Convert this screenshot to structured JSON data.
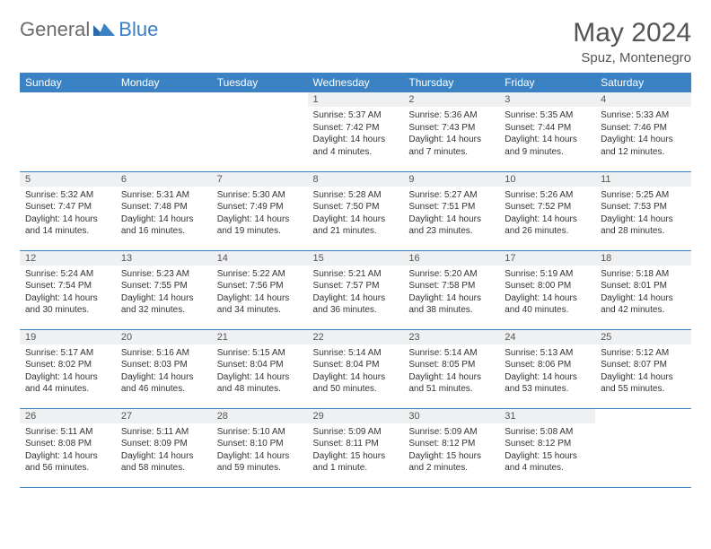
{
  "brand": {
    "general": "General",
    "blue": "Blue"
  },
  "header": {
    "month_title": "May 2024",
    "location": "Spuz, Montenegro"
  },
  "colors": {
    "header_bg": "#3b82c4",
    "header_text": "#ffffff",
    "daynum_bg": "#eef0f2",
    "daynum_text": "#555555",
    "body_text": "#333333",
    "rule": "#3b82c4",
    "logo_general": "#6b6b6b",
    "logo_blue": "#3b7fc4"
  },
  "typography": {
    "month_title_pt": 30,
    "location_pt": 15,
    "dayhead_pt": 12,
    "daynum_pt": 11,
    "cell_pt": 10
  },
  "day_headers": [
    "Sunday",
    "Monday",
    "Tuesday",
    "Wednesday",
    "Thursday",
    "Friday",
    "Saturday"
  ],
  "weeks": [
    [
      {
        "n": "",
        "txt": ""
      },
      {
        "n": "",
        "txt": ""
      },
      {
        "n": "",
        "txt": ""
      },
      {
        "n": "1",
        "txt": "Sunrise: 5:37 AM\nSunset: 7:42 PM\nDaylight: 14 hours and 4 minutes."
      },
      {
        "n": "2",
        "txt": "Sunrise: 5:36 AM\nSunset: 7:43 PM\nDaylight: 14 hours and 7 minutes."
      },
      {
        "n": "3",
        "txt": "Sunrise: 5:35 AM\nSunset: 7:44 PM\nDaylight: 14 hours and 9 minutes."
      },
      {
        "n": "4",
        "txt": "Sunrise: 5:33 AM\nSunset: 7:46 PM\nDaylight: 14 hours and 12 minutes."
      }
    ],
    [
      {
        "n": "5",
        "txt": "Sunrise: 5:32 AM\nSunset: 7:47 PM\nDaylight: 14 hours and 14 minutes."
      },
      {
        "n": "6",
        "txt": "Sunrise: 5:31 AM\nSunset: 7:48 PM\nDaylight: 14 hours and 16 minutes."
      },
      {
        "n": "7",
        "txt": "Sunrise: 5:30 AM\nSunset: 7:49 PM\nDaylight: 14 hours and 19 minutes."
      },
      {
        "n": "8",
        "txt": "Sunrise: 5:28 AM\nSunset: 7:50 PM\nDaylight: 14 hours and 21 minutes."
      },
      {
        "n": "9",
        "txt": "Sunrise: 5:27 AM\nSunset: 7:51 PM\nDaylight: 14 hours and 23 minutes."
      },
      {
        "n": "10",
        "txt": "Sunrise: 5:26 AM\nSunset: 7:52 PM\nDaylight: 14 hours and 26 minutes."
      },
      {
        "n": "11",
        "txt": "Sunrise: 5:25 AM\nSunset: 7:53 PM\nDaylight: 14 hours and 28 minutes."
      }
    ],
    [
      {
        "n": "12",
        "txt": "Sunrise: 5:24 AM\nSunset: 7:54 PM\nDaylight: 14 hours and 30 minutes."
      },
      {
        "n": "13",
        "txt": "Sunrise: 5:23 AM\nSunset: 7:55 PM\nDaylight: 14 hours and 32 minutes."
      },
      {
        "n": "14",
        "txt": "Sunrise: 5:22 AM\nSunset: 7:56 PM\nDaylight: 14 hours and 34 minutes."
      },
      {
        "n": "15",
        "txt": "Sunrise: 5:21 AM\nSunset: 7:57 PM\nDaylight: 14 hours and 36 minutes."
      },
      {
        "n": "16",
        "txt": "Sunrise: 5:20 AM\nSunset: 7:58 PM\nDaylight: 14 hours and 38 minutes."
      },
      {
        "n": "17",
        "txt": "Sunrise: 5:19 AM\nSunset: 8:00 PM\nDaylight: 14 hours and 40 minutes."
      },
      {
        "n": "18",
        "txt": "Sunrise: 5:18 AM\nSunset: 8:01 PM\nDaylight: 14 hours and 42 minutes."
      }
    ],
    [
      {
        "n": "19",
        "txt": "Sunrise: 5:17 AM\nSunset: 8:02 PM\nDaylight: 14 hours and 44 minutes."
      },
      {
        "n": "20",
        "txt": "Sunrise: 5:16 AM\nSunset: 8:03 PM\nDaylight: 14 hours and 46 minutes."
      },
      {
        "n": "21",
        "txt": "Sunrise: 5:15 AM\nSunset: 8:04 PM\nDaylight: 14 hours and 48 minutes."
      },
      {
        "n": "22",
        "txt": "Sunrise: 5:14 AM\nSunset: 8:04 PM\nDaylight: 14 hours and 50 minutes."
      },
      {
        "n": "23",
        "txt": "Sunrise: 5:14 AM\nSunset: 8:05 PM\nDaylight: 14 hours and 51 minutes."
      },
      {
        "n": "24",
        "txt": "Sunrise: 5:13 AM\nSunset: 8:06 PM\nDaylight: 14 hours and 53 minutes."
      },
      {
        "n": "25",
        "txt": "Sunrise: 5:12 AM\nSunset: 8:07 PM\nDaylight: 14 hours and 55 minutes."
      }
    ],
    [
      {
        "n": "26",
        "txt": "Sunrise: 5:11 AM\nSunset: 8:08 PM\nDaylight: 14 hours and 56 minutes."
      },
      {
        "n": "27",
        "txt": "Sunrise: 5:11 AM\nSunset: 8:09 PM\nDaylight: 14 hours and 58 minutes."
      },
      {
        "n": "28",
        "txt": "Sunrise: 5:10 AM\nSunset: 8:10 PM\nDaylight: 14 hours and 59 minutes."
      },
      {
        "n": "29",
        "txt": "Sunrise: 5:09 AM\nSunset: 8:11 PM\nDaylight: 15 hours and 1 minute."
      },
      {
        "n": "30",
        "txt": "Sunrise: 5:09 AM\nSunset: 8:12 PM\nDaylight: 15 hours and 2 minutes."
      },
      {
        "n": "31",
        "txt": "Sunrise: 5:08 AM\nSunset: 8:12 PM\nDaylight: 15 hours and 4 minutes."
      },
      {
        "n": "",
        "txt": ""
      }
    ]
  ]
}
